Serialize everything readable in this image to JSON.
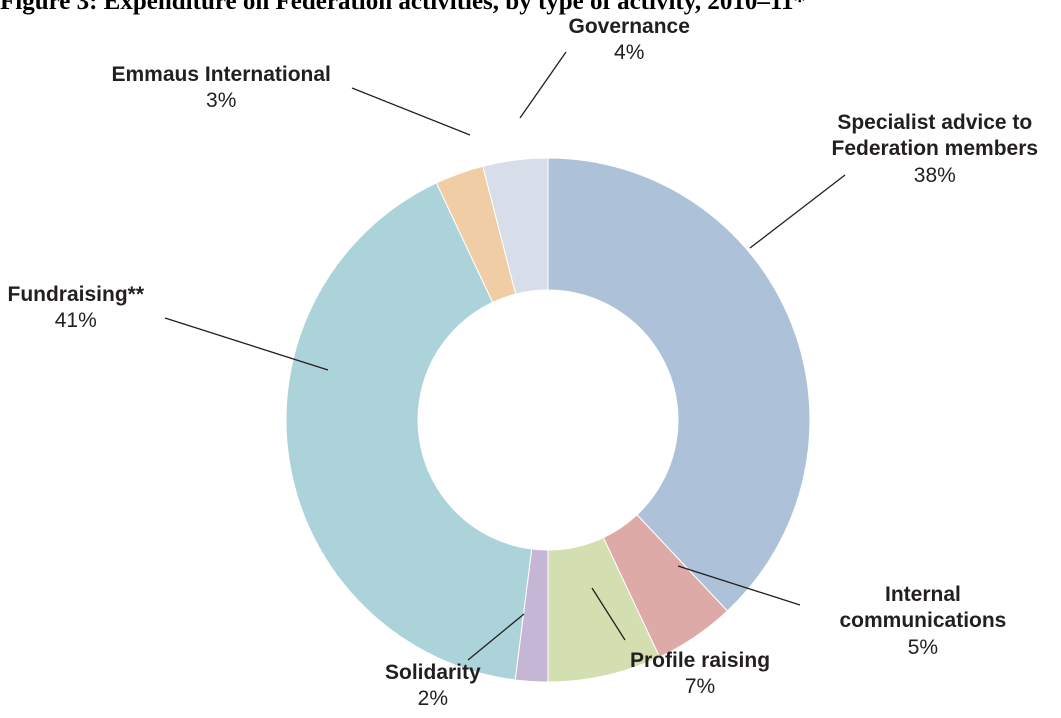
{
  "title": "Figure 3: Expenditure on Federation activities, by type of activity, 2010–11*",
  "chart_data": {
    "type": "pie",
    "donut": true,
    "start": "12 o'clock",
    "direction": "clockwise",
    "slices": [
      {
        "name": "Specialist advice to Federation members",
        "name_lines": [
          "Specialist advice to",
          "Federation members"
        ],
        "label": "38%",
        "value": 38,
        "color": "#adc2d9"
      },
      {
        "name": "Internal communications",
        "name_lines": [
          "Internal",
          "communications"
        ],
        "label": "5%",
        "value": 5,
        "color": "#deaaa7"
      },
      {
        "name": "Profile raising",
        "name_lines": [
          "Profile raising"
        ],
        "label": "7%",
        "value": 7,
        "color": "#d3dfb1"
      },
      {
        "name": "Solidarity",
        "name_lines": [
          "Solidarity"
        ],
        "label": "2%",
        "value": 2,
        "color": "#c5b6d5"
      },
      {
        "name": "Fundraising**",
        "name_lines": [
          "Fundraising**"
        ],
        "label": "41%",
        "value": 41,
        "color": "#acd3da"
      },
      {
        "name": "Emmaus International",
        "name_lines": [
          "Emmaus International"
        ],
        "label": "3%",
        "value": 3,
        "color": "#f1cda6"
      },
      {
        "name": "Governance",
        "name_lines": [
          "Governance"
        ],
        "label": "4%",
        "value": 4,
        "color": "#d8dee9"
      }
    ]
  }
}
